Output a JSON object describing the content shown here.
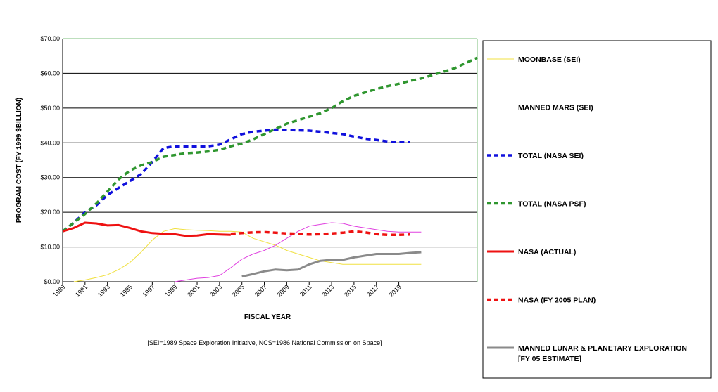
{
  "chart_data": {
    "type": "line",
    "title": "",
    "xlabel": "FISCAL YEAR",
    "ylabel": "PROGRAM COST (FY 1999 $BILLION)",
    "xlim": [
      1989,
      2026
    ],
    "ylim": [
      0,
      70
    ],
    "y_ticks": [
      0,
      10,
      20,
      30,
      40,
      50,
      60,
      70
    ],
    "y_tick_labels": [
      "$0.00",
      "$10.00",
      "$20.00",
      "$30.00",
      "$40.00",
      "$50.00",
      "$60.00",
      "$70.00"
    ],
    "x_ticks": [
      1989,
      1991,
      1993,
      1995,
      1997,
      1999,
      2001,
      2003,
      2005,
      2007,
      2009,
      2011,
      2013,
      2015,
      2017,
      2019
    ],
    "x_tick_labels": [
      "1989",
      "1991",
      "1993",
      "1995",
      "1997",
      "1999",
      "2001",
      "2003",
      "2005",
      "2007",
      "2009",
      "2011",
      "2013",
      "2015",
      "2017",
      "2019"
    ],
    "grid": "horizontal",
    "legend_position": "right",
    "note": "[SEI=1989 Space Exploration Initiative, NCS=1986 National Commission on Space]",
    "series": [
      {
        "name": "MOONBASE (SEI)",
        "color": "#f0e040",
        "style": "solid",
        "x": [
          1990,
          1991,
          1992,
          1993,
          1994,
          1995,
          1996,
          1997,
          1998,
          1999,
          2000,
          2001,
          2002,
          2003,
          2004,
          2005,
          2006,
          2007,
          2008,
          2009,
          2010,
          2011,
          2012,
          2013,
          2014,
          2015,
          2016,
          2017,
          2018,
          2019,
          2020,
          2021
        ],
        "y": [
          0,
          0.5,
          1.2,
          2.0,
          3.5,
          5.5,
          8.5,
          12.0,
          14.5,
          15.3,
          15.0,
          14.8,
          14.7,
          14.5,
          14.5,
          14.3,
          12.5,
          11.5,
          10.5,
          9.0,
          8.0,
          7.0,
          6.0,
          5.5,
          5.0,
          5.0,
          5.0,
          5.0,
          5.0,
          5.0,
          5.0,
          5.0
        ]
      },
      {
        "name": "MANNED MARS (SEI)",
        "color": "#e040e0",
        "style": "solid",
        "x": [
          1999,
          2000,
          2001,
          2002,
          2003,
          2004,
          2005,
          2006,
          2007,
          2008,
          2009,
          2010,
          2011,
          2012,
          2013,
          2014,
          2015,
          2016,
          2017,
          2018,
          2019,
          2020,
          2021
        ],
        "y": [
          0,
          0.5,
          1.0,
          1.2,
          1.8,
          4.0,
          6.5,
          8.0,
          9.0,
          10.5,
          12.5,
          14.5,
          16.0,
          16.5,
          17.0,
          16.8,
          16.0,
          15.5,
          15.0,
          14.5,
          14.3,
          14.3,
          14.3
        ]
      },
      {
        "name": "TOTAL (NASA SEI)",
        "color": "#1010dd",
        "style": "dashed",
        "x": [
          1989,
          1990,
          1991,
          1992,
          1993,
          1994,
          1995,
          1996,
          1997,
          1998,
          1999,
          2000,
          2001,
          2002,
          2003,
          2004,
          2005,
          2006,
          2007,
          2008,
          2009,
          2010,
          2011,
          2012,
          2013,
          2014,
          2015,
          2016,
          2017,
          2018,
          2019,
          2020
        ],
        "y": [
          14.5,
          17.0,
          20.0,
          22.0,
          25.0,
          27.0,
          29.0,
          31.0,
          34.5,
          38.5,
          39.0,
          39.0,
          39.0,
          39.0,
          39.5,
          41.0,
          42.5,
          43.2,
          43.5,
          43.8,
          43.7,
          43.6,
          43.5,
          43.2,
          42.8,
          42.5,
          41.8,
          41.2,
          40.8,
          40.4,
          40.2,
          40.2
        ]
      },
      {
        "name": "TOTAL (NASA PSF)",
        "color": "#2f962f",
        "style": "dashed",
        "x": [
          1989,
          1990,
          1991,
          1992,
          1993,
          1994,
          1995,
          1996,
          1997,
          1998,
          1999,
          2000,
          2001,
          2002,
          2003,
          2004,
          2005,
          2006,
          2007,
          2008,
          2009,
          2010,
          2011,
          2012,
          2013,
          2014,
          2015,
          2016,
          2017,
          2018,
          2019,
          2020,
          2021,
          2022,
          2023,
          2024,
          2025,
          2026
        ],
        "y": [
          14.5,
          17.0,
          19.5,
          22.5,
          26.0,
          29.5,
          32.0,
          33.5,
          34.5,
          36.0,
          36.5,
          37.0,
          37.2,
          37.5,
          38.0,
          39.0,
          39.8,
          41.0,
          42.5,
          44.0,
          45.5,
          46.5,
          47.5,
          48.5,
          50.0,
          52.0,
          53.5,
          54.5,
          55.5,
          56.3,
          57.0,
          57.8,
          58.5,
          59.5,
          60.5,
          61.5,
          63.0,
          64.5
        ]
      },
      {
        "name": "NASA (ACTUAL)",
        "color": "#ee1111",
        "style": "solid-thick",
        "x": [
          1989,
          1990,
          1991,
          1992,
          1993,
          1994,
          1995,
          1996,
          1997,
          1998,
          1999,
          2000,
          2001,
          2002,
          2003,
          2004
        ],
        "y": [
          14.5,
          15.5,
          17.0,
          16.8,
          16.2,
          16.3,
          15.5,
          14.5,
          14.0,
          13.8,
          13.7,
          13.2,
          13.3,
          13.7,
          13.6,
          13.5
        ]
      },
      {
        "name": "NASA (FY 2005 PLAN)",
        "color": "#ee1111",
        "style": "dashed",
        "x": [
          2004,
          2005,
          2006,
          2007,
          2008,
          2009,
          2010,
          2011,
          2012,
          2013,
          2014,
          2015,
          2016,
          2017,
          2018,
          2019,
          2020
        ],
        "y": [
          13.8,
          14.0,
          14.2,
          14.3,
          14.1,
          13.9,
          13.8,
          13.6,
          13.7,
          13.9,
          14.1,
          14.5,
          14.2,
          13.7,
          13.5,
          13.5,
          13.6
        ]
      },
      {
        "name": "MANNED LUNAR & PLANETARY EXPLORATION\n[FY 05 ESTIMATE]",
        "legend_line1": "MANNED LUNAR & PLANETARY EXPLORATION",
        "legend_line2": "[FY 05 ESTIMATE]",
        "color": "#8a8a8a",
        "style": "solid-thick",
        "x": [
          2005,
          2006,
          2007,
          2008,
          2009,
          2010,
          2011,
          2012,
          2013,
          2014,
          2015,
          2016,
          2017,
          2018,
          2019,
          2020,
          2021
        ],
        "y": [
          1.5,
          2.2,
          3.0,
          3.5,
          3.3,
          3.5,
          5.0,
          6.0,
          6.3,
          6.3,
          7.0,
          7.5,
          8.0,
          8.0,
          8.0,
          8.3,
          8.5
        ]
      }
    ]
  }
}
